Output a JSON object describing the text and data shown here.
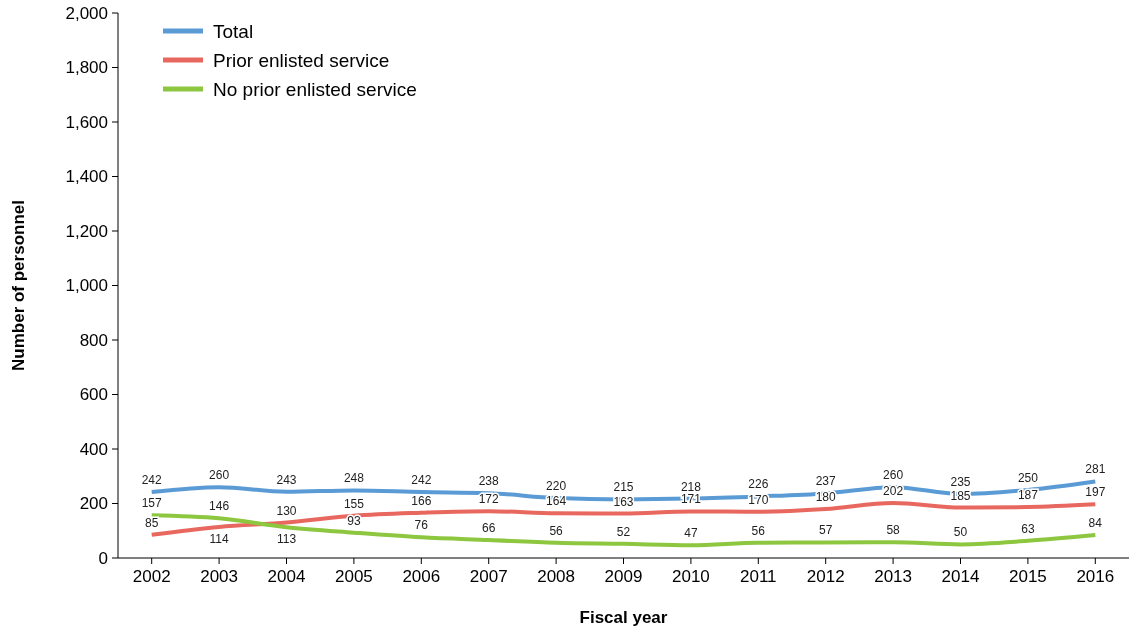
{
  "chart_data": {
    "type": "line",
    "xlabel": "Fiscal year",
    "ylabel": "Number of personnel",
    "categories": [
      "2002",
      "2003",
      "2004",
      "2005",
      "2006",
      "2007",
      "2008",
      "2009",
      "2010",
      "2011",
      "2012",
      "2013",
      "2014",
      "2015",
      "2016"
    ],
    "series": [
      {
        "name": "Total",
        "color": "#5b9bd5",
        "values": [
          242,
          260,
          243,
          248,
          242,
          238,
          220,
          215,
          218,
          226,
          237,
          260,
          235,
          250,
          281
        ]
      },
      {
        "name": "Prior enlisted service",
        "color": "#e8685f",
        "values": [
          85,
          114,
          130,
          155,
          166,
          172,
          164,
          163,
          171,
          170,
          180,
          202,
          185,
          187,
          197
        ]
      },
      {
        "name": "No prior enlisted service",
        "color": "#8dc63f",
        "values": [
          157,
          146,
          113,
          93,
          76,
          66,
          56,
          52,
          47,
          56,
          57,
          58,
          50,
          63,
          84
        ]
      }
    ],
    "ylim": [
      0,
      2000
    ],
    "yticks": [
      {
        "value": 0,
        "label": "0"
      },
      {
        "value": 200,
        "label": "200"
      },
      {
        "value": 400,
        "label": "400"
      },
      {
        "value": 600,
        "label": "600"
      },
      {
        "value": 800,
        "label": "800"
      },
      {
        "value": 1000,
        "label": "1,000"
      },
      {
        "value": 1200,
        "label": "1,200"
      },
      {
        "value": 1400,
        "label": "1,400"
      },
      {
        "value": 1600,
        "label": "1,600"
      },
      {
        "value": 1800,
        "label": "1,800"
      },
      {
        "value": 2000,
        "label": "2,000"
      }
    ],
    "grid": false,
    "legend": "top left",
    "data_labels": true,
    "marker": "none",
    "line_style": "solid"
  }
}
